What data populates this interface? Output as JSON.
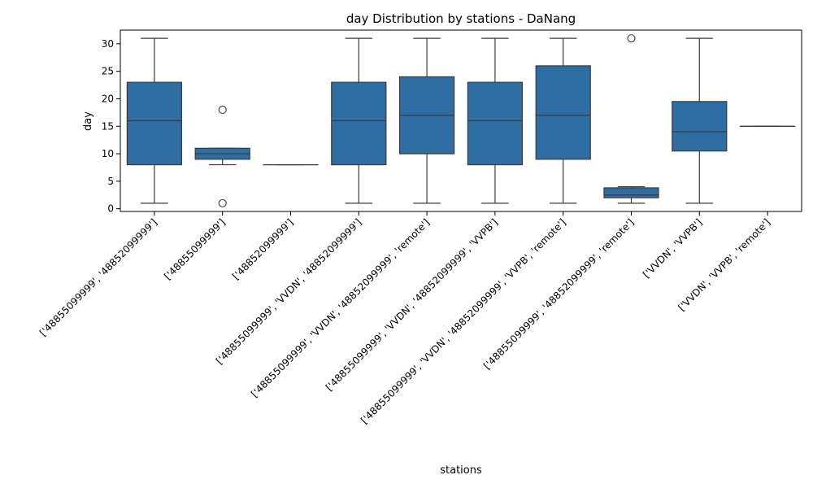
{
  "chart_data": {
    "type": "box",
    "title": "day Distribution by stations - DaNang",
    "xlabel": "stations",
    "ylabel": "day",
    "ylim": [
      -0.5,
      32.5
    ],
    "yticks": [
      0,
      5,
      10,
      15,
      20,
      25,
      30
    ],
    "grid": false,
    "box_color": "#2e6ea3",
    "categories": [
      "['48855099999', '48852099999']",
      "['48855099999']",
      "['48852099999']",
      "['48855099999', 'VVDN', '48852099999']",
      "['48855099999', 'VVDN', '48852099999', 'remote']",
      "['48855099999', 'VVDN', '48852099999', 'VVPB']",
      "['48855099999', 'VVDN', '48852099999', 'VVPB', 'remote']",
      "['48855099999', '48852099999', 'remote']",
      "['VVDN', 'VVPB']",
      "['VVDN', 'VVPB', 'remote']"
    ],
    "boxes": [
      {
        "whislo": 1,
        "q1": 8,
        "med": 16,
        "q3": 23,
        "whishi": 31,
        "fliers": []
      },
      {
        "whislo": 8,
        "q1": 9,
        "med": 10,
        "q3": 11,
        "whishi": 11,
        "fliers": [
          1,
          18
        ]
      },
      {
        "whislo": 8,
        "q1": 8,
        "med": 8,
        "q3": 8,
        "whishi": 8,
        "fliers": []
      },
      {
        "whislo": 1,
        "q1": 8,
        "med": 16,
        "q3": 23,
        "whishi": 31,
        "fliers": []
      },
      {
        "whislo": 1,
        "q1": 10,
        "med": 17,
        "q3": 24,
        "whishi": 31,
        "fliers": []
      },
      {
        "whislo": 1,
        "q1": 8,
        "med": 16,
        "q3": 23,
        "whishi": 31,
        "fliers": []
      },
      {
        "whislo": 1,
        "q1": 9,
        "med": 17,
        "q3": 26,
        "whishi": 31,
        "fliers": []
      },
      {
        "whislo": 1,
        "q1": 2,
        "med": 2.5,
        "q3": 3.8,
        "whishi": 4,
        "fliers": [
          31
        ]
      },
      {
        "whislo": 1,
        "q1": 10.5,
        "med": 14,
        "q3": 19.5,
        "whishi": 31,
        "fliers": []
      },
      {
        "whislo": 15,
        "q1": 15,
        "med": 15,
        "q3": 15,
        "whishi": 15,
        "fliers": []
      }
    ]
  }
}
